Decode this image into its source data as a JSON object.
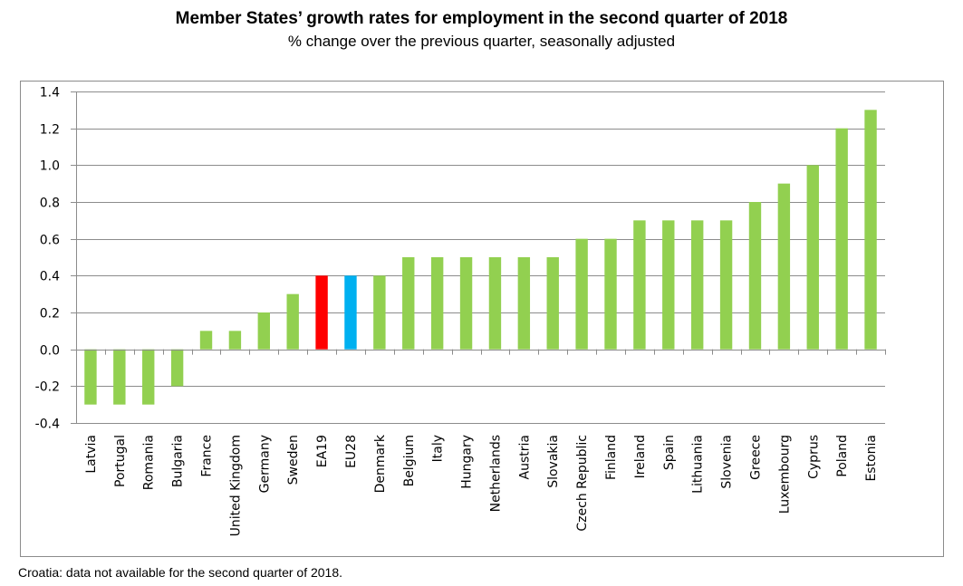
{
  "chart_data": {
    "type": "bar",
    "title": "Member States’ growth rates for employment in the second quarter of 2018",
    "subtitle": "% change over the previous quarter, seasonally adjusted",
    "xlabel": "",
    "ylabel": "",
    "ylim": [
      -0.4,
      1.4
    ],
    "yticks": [
      -0.4,
      -0.2,
      0.0,
      0.2,
      0.4,
      0.6,
      0.8,
      1.0,
      1.2,
      1.4
    ],
    "ytick_labels": [
      "-0.4",
      "-0.2",
      "0.0",
      "0.2",
      "0.4",
      "0.6",
      "0.8",
      "1.0",
      "1.2",
      "1.4"
    ],
    "grid": true,
    "legend": "none",
    "categories": [
      "Latvia",
      "Portugal",
      "Romania",
      "Bulgaria",
      "France",
      "United Kingdom",
      "Germany",
      "Sweden",
      "EA19",
      "EU28",
      "Denmark",
      "Belgium",
      "Italy",
      "Hungary",
      "Netherlands",
      "Austria",
      "Slovakia",
      "Czech Republic",
      "Finland",
      "Ireland",
      "Spain",
      "Lithuania",
      "Slovenia",
      "Greece",
      "Luxembourg",
      "Cyprus",
      "Poland",
      "Estonia"
    ],
    "values": [
      -0.3,
      -0.3,
      -0.3,
      -0.2,
      0.1,
      0.1,
      0.2,
      0.3,
      0.4,
      0.4,
      0.4,
      0.5,
      0.5,
      0.5,
      0.5,
      0.5,
      0.5,
      0.6,
      0.6,
      0.7,
      0.7,
      0.7,
      0.7,
      0.8,
      0.9,
      1.0,
      1.2,
      1.3
    ],
    "colors": {
      "default": "#92d050",
      "EA19": "#ff0000",
      "EU28": "#00b0f0"
    },
    "footnote": "Croatia: data not available for the second quarter of 2018."
  }
}
